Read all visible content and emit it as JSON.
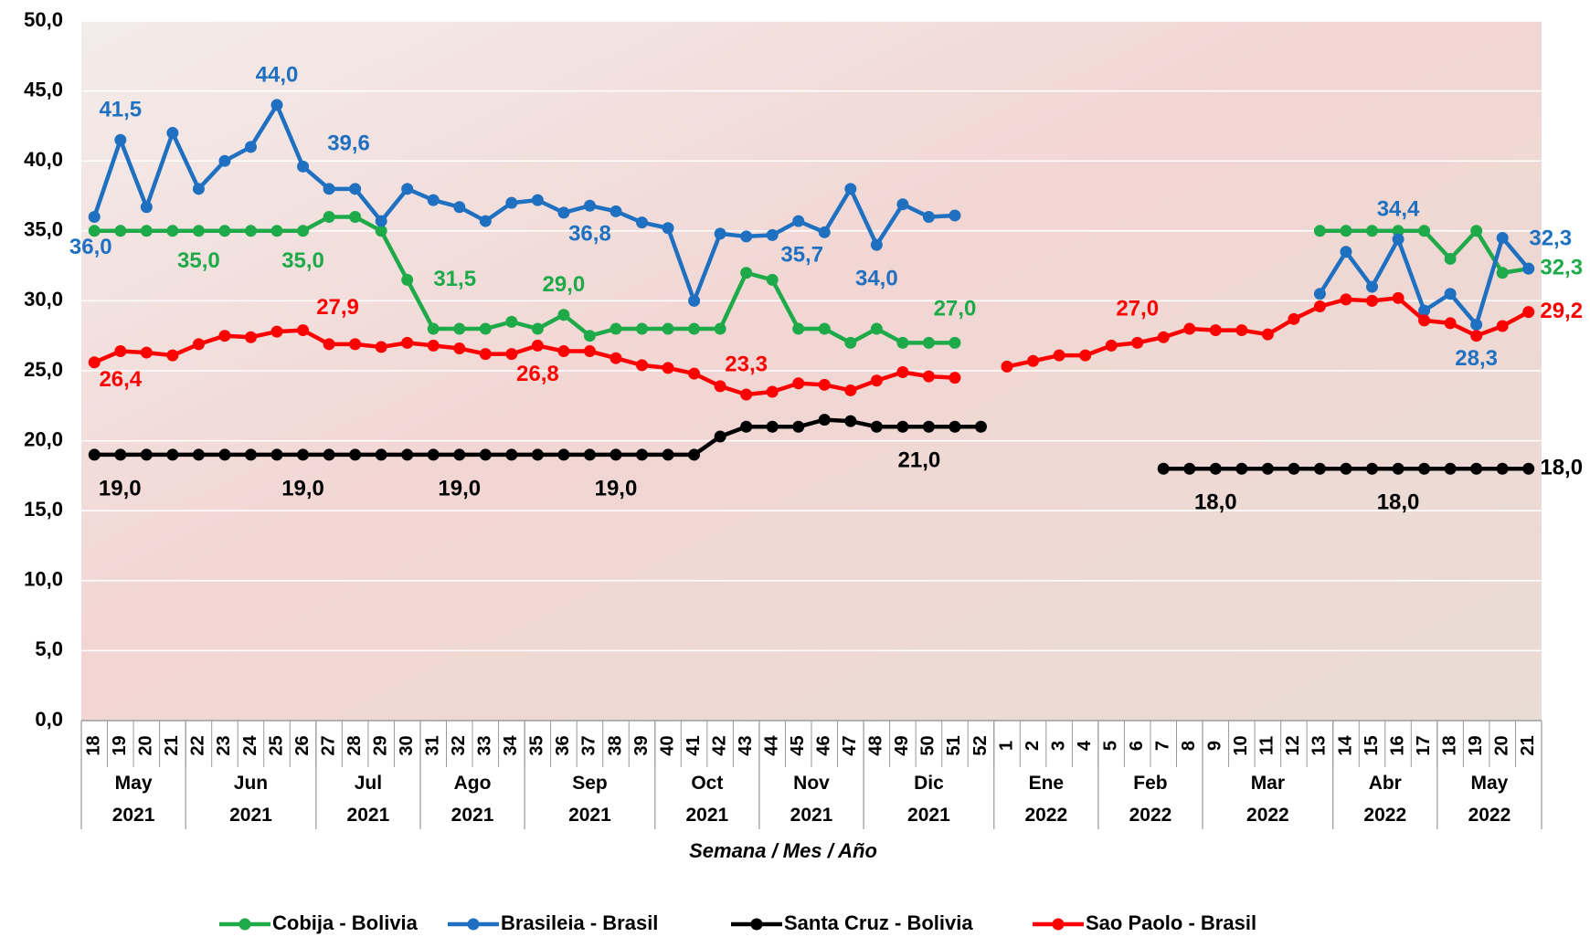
{
  "chart_data": {
    "type": "line",
    "x_axis_title": "Semana / Mes / Año",
    "groups": [
      {
        "month": "May",
        "year": "2021",
        "weeks": [
          "18",
          "19",
          "20",
          "21"
        ]
      },
      {
        "month": "Jun",
        "year": "2021",
        "weeks": [
          "22",
          "23",
          "24",
          "25",
          "26"
        ]
      },
      {
        "month": "Jul",
        "year": "2021",
        "weeks": [
          "27",
          "28",
          "29",
          "30"
        ]
      },
      {
        "month": "Ago",
        "year": "2021",
        "weeks": [
          "31",
          "32",
          "33",
          "34"
        ]
      },
      {
        "month": "Sep",
        "year": "2021",
        "weeks": [
          "35",
          "36",
          "37",
          "38",
          "39"
        ]
      },
      {
        "month": "Oct",
        "year": "2021",
        "weeks": [
          "40",
          "41",
          "42",
          "43"
        ]
      },
      {
        "month": "Nov",
        "year": "2021",
        "weeks": [
          "44",
          "45",
          "46",
          "47"
        ]
      },
      {
        "month": "Dic",
        "year": "2021",
        "weeks": [
          "48",
          "49",
          "50",
          "51",
          "52"
        ]
      },
      {
        "month": "Ene",
        "year": "2022",
        "weeks": [
          "1",
          "2",
          "3",
          "4"
        ]
      },
      {
        "month": "Feb",
        "year": "2022",
        "weeks": [
          "5",
          "6",
          "7",
          "8"
        ]
      },
      {
        "month": "Mar",
        "year": "2022",
        "weeks": [
          "9",
          "10",
          "11",
          "12",
          "13"
        ]
      },
      {
        "month": "Abr",
        "year": "2022",
        "weeks": [
          "14",
          "15",
          "16",
          "17"
        ]
      },
      {
        "month": "May",
        "year": "2022",
        "weeks": [
          "18",
          "19",
          "20",
          "21"
        ]
      }
    ],
    "ylim": [
      0,
      50
    ],
    "yticks": [
      {
        "value": 0,
        "label": "0,0"
      },
      {
        "value": 5,
        "label": "5,0"
      },
      {
        "value": 10,
        "label": "10,0"
      },
      {
        "value": 15,
        "label": "15,0"
      },
      {
        "value": 20,
        "label": "20,0"
      },
      {
        "value": 25,
        "label": "25,0"
      },
      {
        "value": 30,
        "label": "30,0"
      },
      {
        "value": 35,
        "label": "35,0"
      },
      {
        "value": 40,
        "label": "40,0"
      },
      {
        "value": 45,
        "label": "45,0"
      },
      {
        "value": 50,
        "label": "50,0"
      }
    ],
    "grid": true,
    "legend": "bottom",
    "series": [
      {
        "name": "Cobija - Bolivia",
        "color": "#1faa4a",
        "values": [
          35,
          35,
          35,
          35,
          35,
          35,
          35,
          35,
          35,
          36,
          36,
          35,
          31.5,
          28,
          28,
          28,
          28.5,
          28,
          29,
          27.5,
          28,
          28,
          28,
          28,
          28,
          32,
          31.5,
          28,
          28,
          27,
          28,
          27,
          27,
          27,
          null,
          null,
          null,
          null,
          null,
          null,
          null,
          null,
          null,
          null,
          null,
          null,
          null,
          35,
          35,
          35,
          35,
          35,
          33,
          35,
          32,
          32.3
        ],
        "value_labels": [
          null,
          null,
          null,
          null,
          "35,0",
          null,
          null,
          null,
          "35,0",
          null,
          null,
          null,
          "31,5",
          null,
          null,
          null,
          null,
          null,
          "29,0",
          null,
          null,
          null,
          null,
          null,
          null,
          null,
          null,
          null,
          null,
          null,
          null,
          null,
          null,
          "27,0",
          null,
          null,
          null,
          null,
          null,
          null,
          null,
          null,
          null,
          null,
          null,
          null,
          null,
          null,
          null,
          null,
          null,
          null,
          null,
          null,
          null,
          "32,3"
        ]
      },
      {
        "name": "Brasileia - Brasil",
        "color": "#1f70c1",
        "values": [
          36,
          41.5,
          36.7,
          42,
          38,
          40,
          41,
          44,
          39.6,
          38,
          38,
          35.7,
          38,
          37.2,
          36.7,
          35.7,
          37,
          37.2,
          36.3,
          36.8,
          36.4,
          35.6,
          35.2,
          30,
          34.8,
          34.6,
          34.7,
          35.7,
          34.9,
          38,
          34,
          36.9,
          36,
          36.1,
          null,
          null,
          null,
          null,
          null,
          null,
          null,
          null,
          null,
          null,
          null,
          null,
          null,
          30.5,
          33.5,
          31,
          34.4,
          29.3,
          30.5,
          28.3,
          34.5,
          32.3
        ],
        "value_labels": [
          "36,0",
          "41,5",
          null,
          null,
          null,
          null,
          null,
          "44,0",
          "39,6",
          null,
          null,
          null,
          null,
          null,
          null,
          null,
          null,
          null,
          null,
          "36,8",
          null,
          null,
          null,
          null,
          null,
          null,
          null,
          "35,7",
          null,
          null,
          "34,0",
          null,
          null,
          null,
          null,
          null,
          null,
          null,
          null,
          null,
          null,
          null,
          null,
          null,
          null,
          null,
          null,
          null,
          null,
          null,
          "34,4",
          null,
          null,
          "28,3",
          null,
          "32,3"
        ]
      },
      {
        "name": "Santa Cruz - Bolivia",
        "color": "#000000",
        "values": [
          19,
          19,
          19,
          19,
          19,
          19,
          19,
          19,
          19,
          19,
          19,
          19,
          19,
          19,
          19,
          19,
          19,
          19,
          19,
          19,
          19,
          19,
          19,
          19,
          20.3,
          21,
          21,
          21,
          21.5,
          21.4,
          21,
          21,
          21,
          21,
          21,
          null,
          null,
          null,
          null,
          null,
          null,
          18,
          18,
          18,
          18,
          18,
          18,
          18,
          18,
          18,
          18,
          18,
          18,
          18,
          18,
          18
        ],
        "value_labels": [
          "19,0",
          null,
          null,
          null,
          null,
          null,
          null,
          null,
          "19,0",
          null,
          null,
          null,
          null,
          null,
          "19,0",
          null,
          null,
          null,
          null,
          null,
          "19,0",
          null,
          null,
          null,
          null,
          null,
          null,
          null,
          null,
          null,
          null,
          "21,0",
          null,
          null,
          null,
          null,
          null,
          null,
          null,
          null,
          null,
          null,
          null,
          "18,0",
          null,
          null,
          null,
          null,
          null,
          null,
          "18,0",
          null,
          null,
          null,
          null,
          "18,0"
        ]
      },
      {
        "name": "Sao Paolo - Brasil",
        "color": "#ff0000",
        "values": [
          25.6,
          26.4,
          26.3,
          26.1,
          26.9,
          27.5,
          27.4,
          27.8,
          27.9,
          26.9,
          26.9,
          26.7,
          27,
          26.8,
          26.6,
          26.2,
          26.2,
          26.8,
          26.4,
          26.4,
          25.9,
          25.4,
          25.2,
          24.8,
          23.9,
          23.3,
          23.5,
          24.1,
          24,
          23.6,
          24.3,
          24.9,
          24.6,
          24.5,
          null,
          25.3,
          25.7,
          26.1,
          26.1,
          26.8,
          27,
          27.4,
          28,
          27.9,
          27.9,
          27.6,
          28.7,
          29.6,
          30.1,
          30,
          30.2,
          28.6,
          28.4,
          27.5,
          28.2,
          29.2
        ],
        "value_labels": [
          null,
          "26,4",
          null,
          null,
          null,
          null,
          null,
          null,
          "27,9",
          null,
          null,
          null,
          null,
          null,
          null,
          null,
          null,
          "26,8",
          null,
          null,
          null,
          null,
          null,
          null,
          null,
          "23,3",
          null,
          null,
          null,
          null,
          null,
          null,
          null,
          null,
          null,
          null,
          null,
          null,
          null,
          null,
          "27,0",
          null,
          null,
          null,
          null,
          null,
          null,
          null,
          null,
          null,
          null,
          null,
          null,
          null,
          null,
          "29,2"
        ]
      }
    ]
  }
}
